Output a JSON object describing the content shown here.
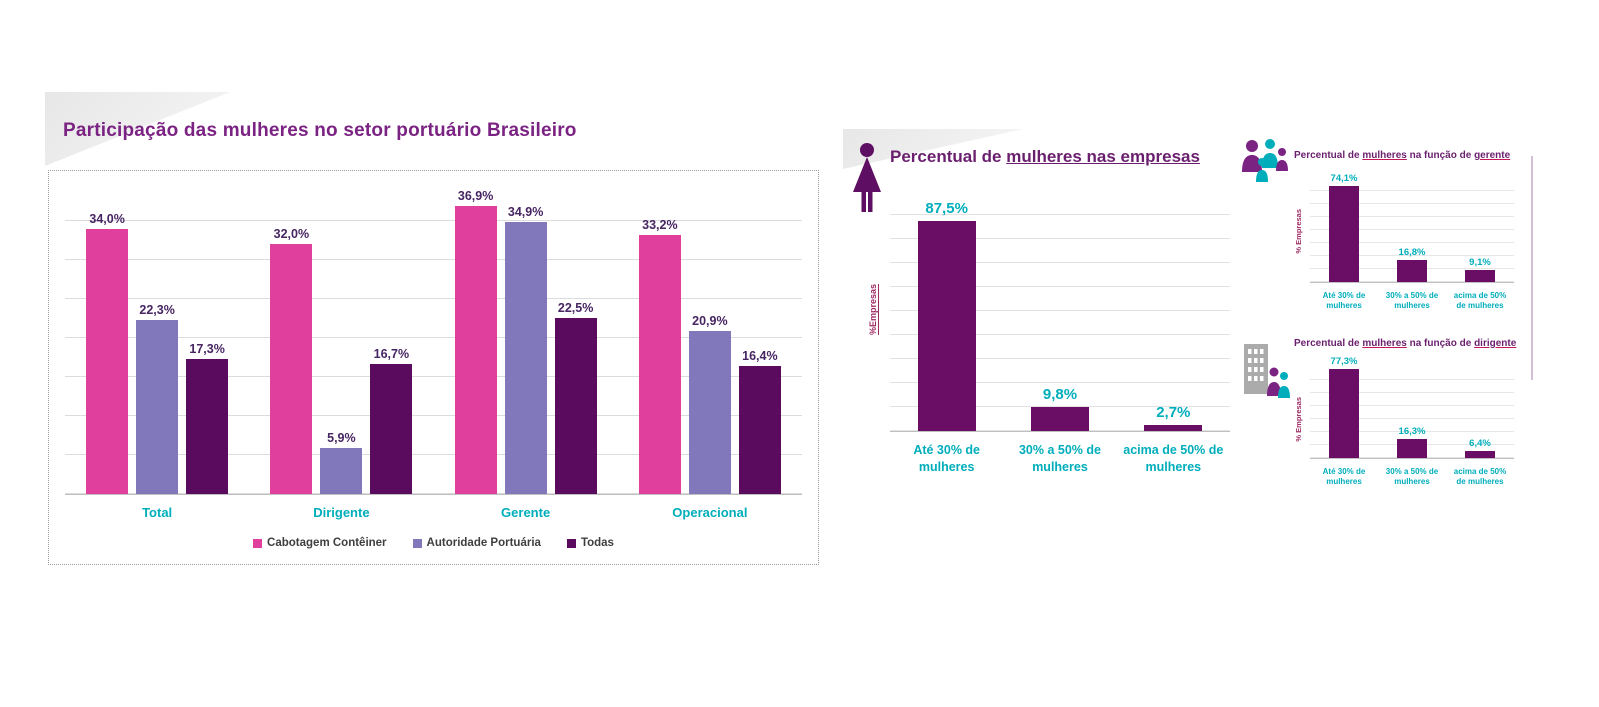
{
  "colors": {
    "pink": "#E03F9D",
    "lavender": "#8078BA",
    "dark_purple": "#5A0B5E",
    "plum": "#6A0D64",
    "teal": "#00AEBB",
    "title_purple": "#7B2383",
    "small_title_purple": "#6A1F6E",
    "value_label_dark": "#472562",
    "ylabel_red": "#9E2A63",
    "legend_text": "#3F3F3F"
  },
  "chart_data": [
    {
      "id": "main",
      "type": "bar",
      "title": "Participação das mulheres no setor portuário Brasileiro",
      "categories": [
        "Total",
        "Dirigente",
        "Gerente",
        "Operacional"
      ],
      "series": [
        {
          "name": "Cabotagem Contêiner",
          "color": "#E03F9D",
          "values": [
            34.0,
            32.0,
            36.9,
            33.2
          ],
          "labels": [
            "34,0%",
            "32,0%",
            "36,9%",
            "33,2%"
          ]
        },
        {
          "name": "Autoridade Portuária",
          "color": "#8078BA",
          "values": [
            22.3,
            5.9,
            34.9,
            20.9
          ],
          "labels": [
            "22,3%",
            "5,9%",
            "34,9%",
            "20,9%"
          ]
        },
        {
          "name": "Todas",
          "color": "#5A0B5E",
          "values": [
            17.3,
            16.7,
            22.5,
            16.4
          ],
          "labels": [
            "17,3%",
            "16,7%",
            "22,5%",
            "16,4%"
          ]
        }
      ],
      "ylim": [
        0,
        40
      ],
      "grid_step": 5,
      "grid": true,
      "legend_position": "bottom",
      "xlabel": "",
      "ylabel": ""
    },
    {
      "id": "empresas",
      "type": "bar",
      "title": "Percentual de mulheres nas empresas",
      "title_parts": [
        "Percentual de ",
        "mulheres nas empresas"
      ],
      "ylabel": "%Empresas",
      "xlabel": "",
      "categories": [
        "Até 30% de mulheres",
        "30% a 50% de mulheres",
        "acima de 50% de mulheres"
      ],
      "values": [
        87.5,
        9.8,
        2.7
      ],
      "labels": [
        "87,5%",
        "9,8%",
        "2,7%"
      ],
      "bar_color": "#6A0D64",
      "ylim": [
        0,
        100
      ],
      "grid_step": 10,
      "grid": true
    },
    {
      "id": "gerente",
      "type": "bar",
      "title": "Percentual de mulheres na função de gerente",
      "title_parts": [
        "Percentual de ",
        "mulheres",
        " na função de ",
        "gerente"
      ],
      "ylabel": "% Empresas",
      "xlabel": "",
      "categories": [
        "Até 30% de mulheres",
        "30% a 50% de mulheres",
        "acima de 50% de mulheres"
      ],
      "values": [
        74.1,
        16.8,
        9.1
      ],
      "labels": [
        "74,1%",
        "16,8%",
        "9,1%"
      ],
      "bar_color": "#6A0D64",
      "ylim": [
        0,
        80
      ],
      "grid_step": 10,
      "grid": true
    },
    {
      "id": "dirigente",
      "type": "bar",
      "title": "Percentual de mulheres na função de dirigente",
      "title_parts": [
        "Percentual de ",
        "mulheres",
        " na função de ",
        "dirigente"
      ],
      "ylabel": "% Empresas",
      "xlabel": "",
      "categories": [
        "Até 30% de mulheres",
        "30% a 50% de mulheres",
        "acima de 50% de mulheres"
      ],
      "values": [
        77.3,
        16.3,
        6.4
      ],
      "labels": [
        "77,3%",
        "16,3%",
        "6,4%"
      ],
      "bar_color": "#6A0D64",
      "ylim": [
        0,
        80
      ],
      "grid_step": 10,
      "grid": true
    }
  ]
}
